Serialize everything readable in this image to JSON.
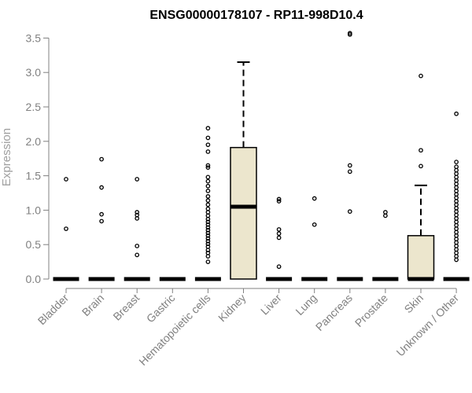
{
  "chart_data": {
    "type": "box",
    "title": "ENSG00000178107 - RP11-998D10.4",
    "xlabel": "",
    "ylabel": "Expression",
    "ylim": [
      0,
      3.6
    ],
    "yticks": [
      "0.0",
      "0.5",
      "1.0",
      "1.5",
      "2.0",
      "2.5",
      "3.0",
      "3.5"
    ],
    "grid": false,
    "box_fill": "#ece6cd",
    "line_color": "#000000",
    "axis_color": "#808080",
    "categories": [
      "Bladder",
      "Brain",
      "Breast",
      "Gastric",
      "Hematopoietic cells",
      "Kidney",
      "Liver",
      "Lung",
      "Pancreas",
      "Prostate",
      "Skin",
      "Unknown / Other"
    ],
    "boxes": [
      {
        "category": "Bladder",
        "q1": 0,
        "median": 0,
        "q3": 0,
        "whisker_low": 0,
        "whisker_high": 0,
        "outliers": [
          0.73,
          1.45
        ]
      },
      {
        "category": "Brain",
        "q1": 0,
        "median": 0,
        "q3": 0,
        "whisker_low": 0,
        "whisker_high": 0,
        "outliers": [
          0.84,
          0.94,
          1.33,
          1.74
        ]
      },
      {
        "category": "Breast",
        "q1": 0,
        "median": 0,
        "q3": 0,
        "whisker_low": 0,
        "whisker_high": 0,
        "outliers": [
          0.35,
          0.48,
          0.88,
          0.93,
          0.97,
          1.45
        ]
      },
      {
        "category": "Gastric",
        "q1": 0,
        "median": 0,
        "q3": 0,
        "whisker_low": 0,
        "whisker_high": 0,
        "outliers": []
      },
      {
        "category": "Hematopoietic cells",
        "q1": 0,
        "median": 0,
        "q3": 0,
        "whisker_low": 0,
        "whisker_high": 0,
        "outliers": [
          0.25,
          0.33,
          0.38,
          0.42,
          0.47,
          0.51,
          0.55,
          0.59,
          0.63,
          0.67,
          0.71,
          0.75,
          0.79,
          0.83,
          0.87,
          0.92,
          0.97,
          1.02,
          1.08,
          1.14,
          1.2,
          1.28,
          1.35,
          1.42,
          1.48,
          1.62,
          1.65,
          1.85,
          1.95,
          2.05,
          2.19
        ]
      },
      {
        "category": "Kidney",
        "q1": 0,
        "median": 1.05,
        "q3": 1.91,
        "whisker_low": 0,
        "whisker_high": 3.15,
        "outliers": []
      },
      {
        "category": "Liver",
        "q1": 0,
        "median": 0,
        "q3": 0,
        "whisker_low": 0,
        "whisker_high": 0,
        "outliers": [
          0.18,
          0.6,
          0.66,
          0.72,
          1.13,
          1.16
        ]
      },
      {
        "category": "Lung",
        "q1": 0,
        "median": 0,
        "q3": 0,
        "whisker_low": 0,
        "whisker_high": 0,
        "outliers": [
          0.79,
          1.17
        ]
      },
      {
        "category": "Pancreas",
        "q1": 0,
        "median": 0,
        "q3": 0,
        "whisker_low": 0,
        "whisker_high": 0,
        "outliers": [
          0.98,
          1.56,
          1.65,
          3.55,
          3.57
        ]
      },
      {
        "category": "Prostate",
        "q1": 0,
        "median": 0,
        "q3": 0,
        "whisker_low": 0,
        "whisker_high": 0,
        "outliers": [
          0.92,
          0.97
        ]
      },
      {
        "category": "Skin",
        "q1": 0,
        "median": 0,
        "q3": 0.63,
        "whisker_low": 0,
        "whisker_high": 1.36,
        "outliers": [
          1.64,
          1.87,
          2.95
        ]
      },
      {
        "category": "Unknown / Other",
        "q1": 0,
        "median": 0,
        "q3": 0,
        "whisker_low": 0,
        "whisker_high": 0,
        "outliers": [
          0.28,
          0.33,
          0.38,
          0.43,
          0.48,
          0.53,
          0.58,
          0.63,
          0.68,
          0.73,
          0.78,
          0.83,
          0.88,
          0.93,
          0.98,
          1.03,
          1.08,
          1.13,
          1.18,
          1.23,
          1.28,
          1.33,
          1.38,
          1.43,
          1.48,
          1.53,
          1.58,
          1.63,
          1.7,
          2.4
        ]
      }
    ]
  }
}
